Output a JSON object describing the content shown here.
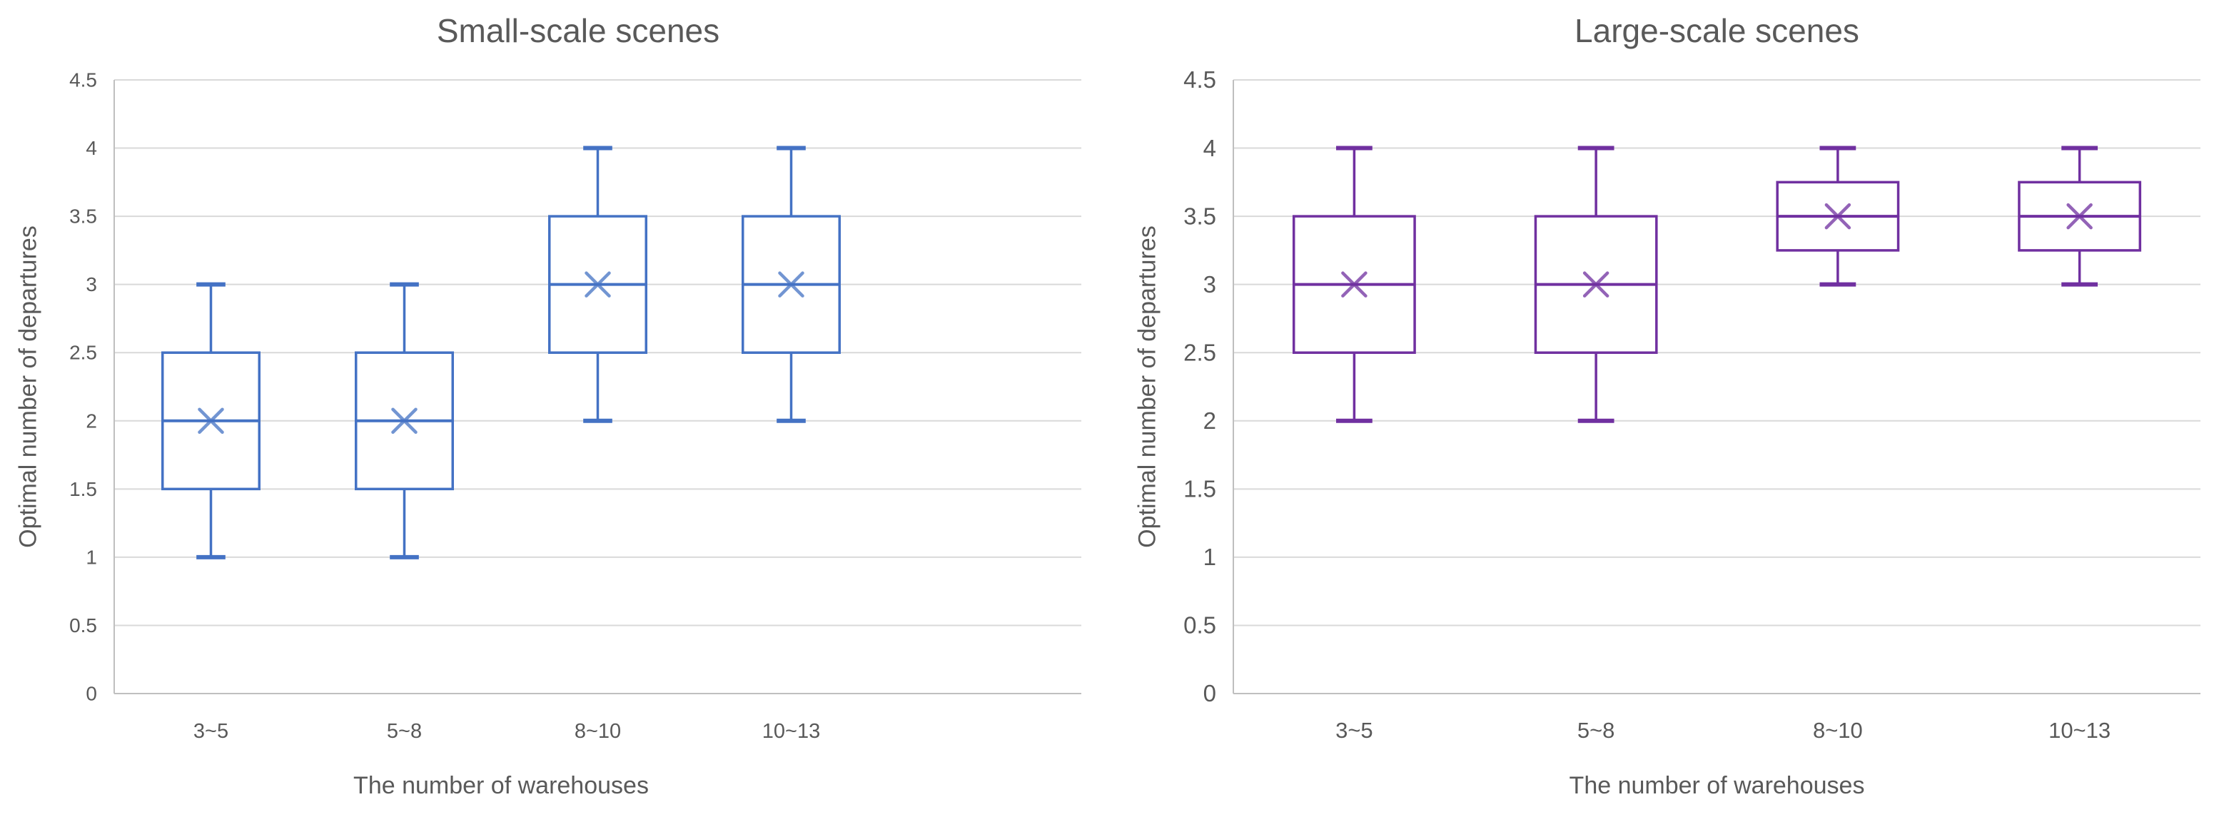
{
  "styles": {
    "background": "#ffffff",
    "title_color": "#595959",
    "axis_title_color": "#595959",
    "tick_label_color": "#595959",
    "gridline_color": "#D9D9D9",
    "axis_line_color": "#BFBFBF"
  },
  "chart_data": [
    {
      "type": "boxplot",
      "title": "Small-scale scenes",
      "xlabel": "The number of warehouses",
      "ylabel": "Optimal number of departures",
      "ylim": [
        0,
        4.5
      ],
      "ytick_step": 0.5,
      "yticks": [
        "0",
        "0.5",
        "1",
        "1.5",
        "2",
        "2.5",
        "3",
        "3.5",
        "4",
        "4.5"
      ],
      "grid": true,
      "legend": "none",
      "series_color": "#4472C4",
      "x_slots": 5,
      "categories": [
        "3~5",
        "5~8",
        "8~10",
        "10~13"
      ],
      "boxes": [
        {
          "category": "3~5",
          "whisker_low": 1,
          "q1": 1.5,
          "median": 2,
          "q3": 2.5,
          "whisker_high": 3,
          "mean": 2
        },
        {
          "category": "5~8",
          "whisker_low": 1,
          "q1": 1.5,
          "median": 2,
          "q3": 2.5,
          "whisker_high": 3,
          "mean": 2
        },
        {
          "category": "8~10",
          "whisker_low": 2,
          "q1": 2.5,
          "median": 3,
          "q3": 3.5,
          "whisker_high": 4,
          "mean": 3
        },
        {
          "category": "10~13",
          "whisker_low": 2,
          "q1": 2.5,
          "median": 3,
          "q3": 3.5,
          "whisker_high": 4,
          "mean": 3
        }
      ]
    },
    {
      "type": "boxplot",
      "title": "Large-scale scenes",
      "xlabel": "The number of warehouses",
      "ylabel": "Optimal number of departures",
      "ylim": [
        0,
        4.5
      ],
      "ytick_step": 0.5,
      "yticks": [
        "0",
        "0.5",
        "1",
        "1.5",
        "2",
        "2.5",
        "3",
        "3.5",
        "4",
        "4.5"
      ],
      "grid": true,
      "legend": "none",
      "series_color": "#7030A0",
      "x_slots": 4,
      "categories": [
        "3~5",
        "5~8",
        "8~10",
        "10~13"
      ],
      "boxes": [
        {
          "category": "3~5",
          "whisker_low": 2,
          "q1": 2.5,
          "median": 3,
          "q3": 3.5,
          "whisker_high": 4,
          "mean": 3
        },
        {
          "category": "5~8",
          "whisker_low": 2,
          "q1": 2.5,
          "median": 3,
          "q3": 3.5,
          "whisker_high": 4,
          "mean": 3
        },
        {
          "category": "8~10",
          "whisker_low": 3,
          "q1": 3.25,
          "median": 3.5,
          "q3": 3.75,
          "whisker_high": 4,
          "mean": 3.5
        },
        {
          "category": "10~13",
          "whisker_low": 3,
          "q1": 3.25,
          "median": 3.5,
          "q3": 3.75,
          "whisker_high": 4,
          "mean": 3.5
        }
      ]
    }
  ]
}
